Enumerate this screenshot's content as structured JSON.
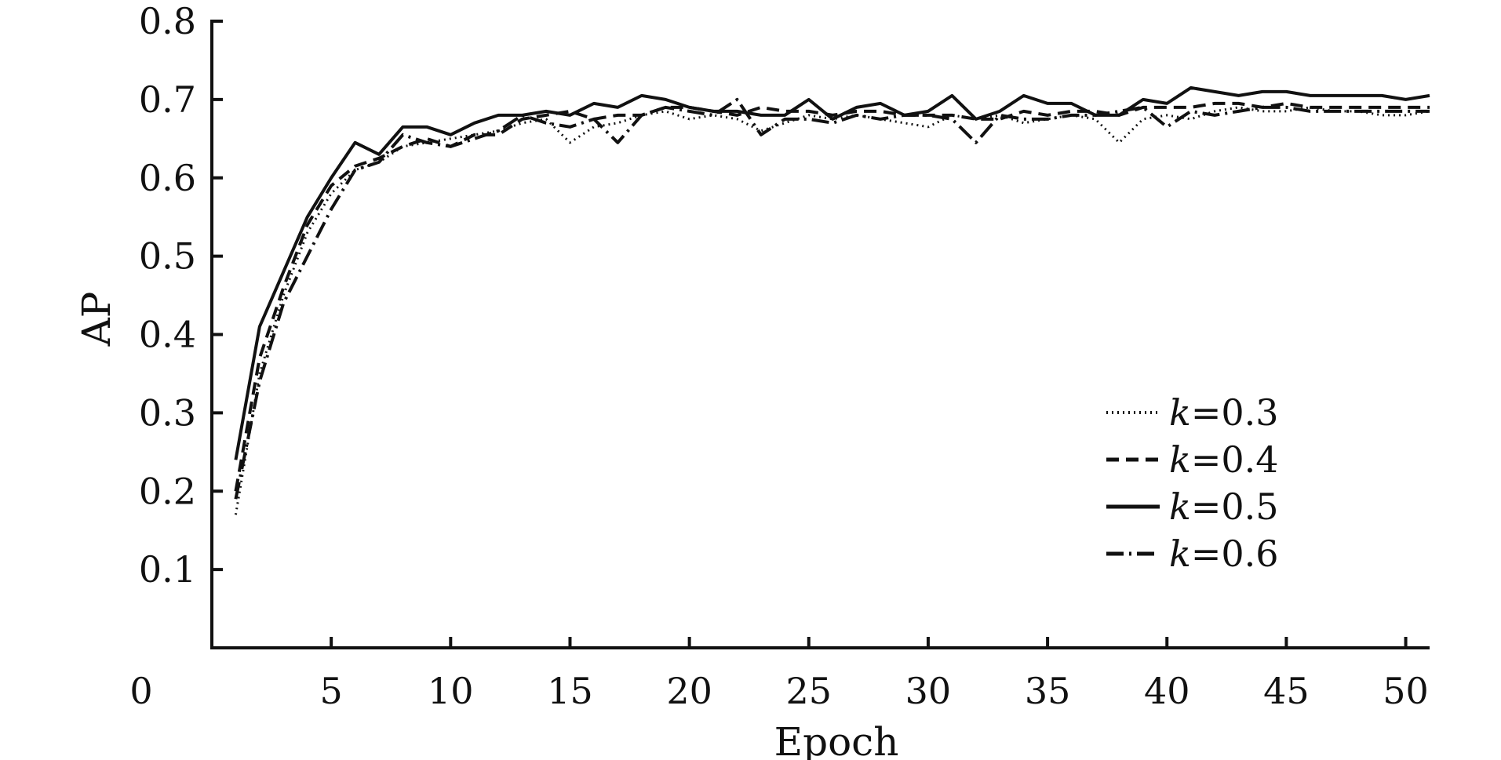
{
  "chart_data": {
    "type": "line",
    "title": "",
    "xlabel": "Epoch",
    "ylabel": "AP",
    "xlim": [
      0,
      51
    ],
    "ylim": [
      0,
      0.8
    ],
    "x_ticks": [
      5,
      10,
      15,
      20,
      25,
      30,
      35,
      40,
      45,
      50
    ],
    "y_ticks": [
      0.1,
      0.2,
      0.3,
      0.4,
      0.5,
      0.6,
      0.7,
      0.8
    ],
    "origin_label": "0",
    "grid": false,
    "legend_position": "right",
    "legend_var": "k",
    "x": [
      1,
      2,
      3,
      4,
      5,
      6,
      7,
      8,
      9,
      10,
      11,
      12,
      13,
      14,
      15,
      16,
      17,
      18,
      19,
      20,
      21,
      22,
      23,
      24,
      25,
      26,
      27,
      28,
      29,
      30,
      31,
      32,
      33,
      34,
      35,
      36,
      37,
      38,
      39,
      40,
      41,
      42,
      43,
      44,
      45,
      46,
      47,
      48,
      49,
      50,
      51
    ],
    "series": [
      {
        "name": "=0.3",
        "style": "dotted",
        "values": [
          0.17,
          0.35,
          0.45,
          0.53,
          0.58,
          0.61,
          0.62,
          0.64,
          0.645,
          0.65,
          0.655,
          0.66,
          0.67,
          0.675,
          0.645,
          0.665,
          0.67,
          0.68,
          0.685,
          0.675,
          0.68,
          0.675,
          0.66,
          0.67,
          0.68,
          0.675,
          0.68,
          0.675,
          0.67,
          0.665,
          0.68,
          0.675,
          0.68,
          0.67,
          0.675,
          0.68,
          0.675,
          0.645,
          0.675,
          0.68,
          0.675,
          0.685,
          0.69,
          0.685,
          0.685,
          0.69,
          0.685,
          0.685,
          0.68,
          0.68,
          0.685
        ]
      },
      {
        "name": "=0.4",
        "style": "dashed",
        "values": [
          0.2,
          0.37,
          0.46,
          0.54,
          0.59,
          0.615,
          0.625,
          0.64,
          0.65,
          0.64,
          0.655,
          0.655,
          0.675,
          0.68,
          0.685,
          0.675,
          0.68,
          0.68,
          0.69,
          0.69,
          0.685,
          0.68,
          0.69,
          0.685,
          0.685,
          0.68,
          0.685,
          0.685,
          0.68,
          0.68,
          0.68,
          0.675,
          0.675,
          0.685,
          0.68,
          0.685,
          0.685,
          0.68,
          0.69,
          0.69,
          0.69,
          0.695,
          0.695,
          0.69,
          0.695,
          0.69,
          0.69,
          0.69,
          0.69,
          0.69,
          0.69
        ]
      },
      {
        "name": "=0.5",
        "style": "solid",
        "values": [
          0.24,
          0.41,
          0.48,
          0.55,
          0.6,
          0.645,
          0.63,
          0.665,
          0.665,
          0.655,
          0.67,
          0.68,
          0.68,
          0.685,
          0.68,
          0.695,
          0.69,
          0.705,
          0.7,
          0.69,
          0.685,
          0.685,
          0.68,
          0.68,
          0.7,
          0.675,
          0.69,
          0.695,
          0.68,
          0.685,
          0.705,
          0.675,
          0.685,
          0.705,
          0.695,
          0.695,
          0.68,
          0.68,
          0.7,
          0.695,
          0.715,
          0.71,
          0.705,
          0.71,
          0.71,
          0.705,
          0.705,
          0.705,
          0.705,
          0.7,
          0.705
        ]
      },
      {
        "name": "=0.6",
        "style": "dashdot",
        "values": [
          0.19,
          0.34,
          0.44,
          0.5,
          0.56,
          0.61,
          0.62,
          0.655,
          0.645,
          0.64,
          0.65,
          0.66,
          0.68,
          0.67,
          0.665,
          0.675,
          0.645,
          0.68,
          0.69,
          0.685,
          0.68,
          0.7,
          0.655,
          0.675,
          0.675,
          0.67,
          0.68,
          0.675,
          0.68,
          0.68,
          0.675,
          0.645,
          0.68,
          0.675,
          0.675,
          0.68,
          0.68,
          0.685,
          0.69,
          0.665,
          0.685,
          0.68,
          0.685,
          0.69,
          0.69,
          0.685,
          0.685,
          0.685,
          0.685,
          0.685,
          0.685
        ]
      }
    ]
  }
}
